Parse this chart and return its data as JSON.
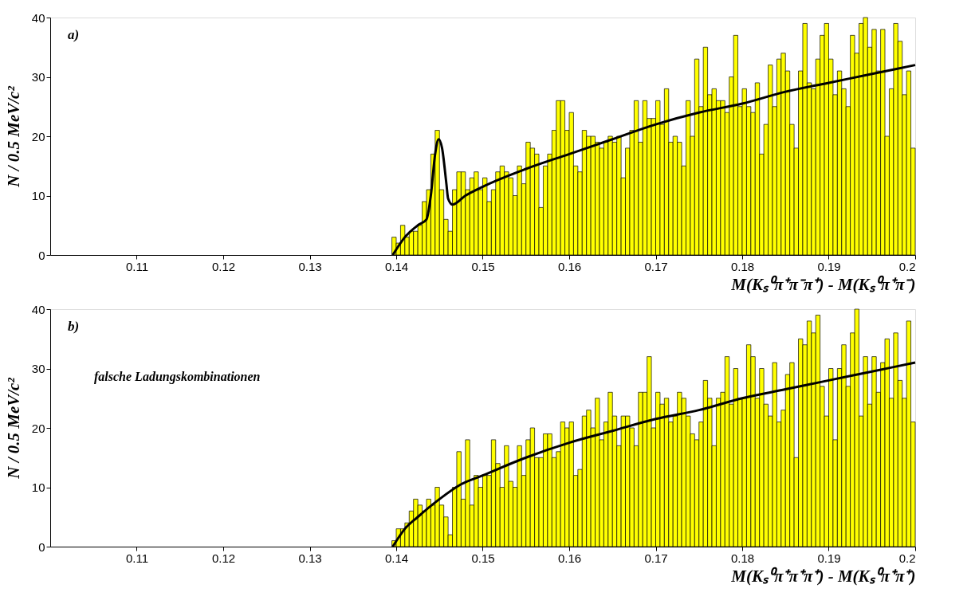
{
  "chart_data": [
    {
      "type": "histogram",
      "xlabel": "M(Kₛ⁰π⁺π⁻π⁺) - M(Kₛ⁰π⁺π⁻)",
      "ylabel": "N / 0.5 MeV/c²",
      "annotations": [
        "a)"
      ],
      "xlim": [
        0.1,
        0.2
      ],
      "xticks": [
        0.11,
        0.12,
        0.13,
        0.14,
        0.15,
        0.16,
        0.17,
        0.18,
        0.19,
        0.2
      ],
      "ylim": [
        0,
        40
      ],
      "yticks": [
        0,
        10,
        20,
        30,
        40
      ],
      "grid": false,
      "bins": [
        0.1395,
        0.14,
        0.1405,
        0.141,
        0.1415,
        0.142,
        0.1425,
        0.143,
        0.1435,
        0.144,
        0.1445,
        0.145,
        0.1455,
        0.146,
        0.1465,
        0.147,
        0.1475,
        0.148,
        0.1485,
        0.149,
        0.1495,
        0.15,
        0.1505,
        0.151,
        0.1515,
        0.152,
        0.1525,
        0.153,
        0.1535,
        0.154,
        0.1545,
        0.155,
        0.1555,
        0.156,
        0.1565,
        0.157,
        0.1575,
        0.158,
        0.1585,
        0.159,
        0.1595,
        0.16,
        0.1605,
        0.161,
        0.1615,
        0.162,
        0.1625,
        0.163,
        0.1635,
        0.164,
        0.1645,
        0.165,
        0.1655,
        0.166,
        0.1665,
        0.167,
        0.1675,
        0.168,
        0.1685,
        0.169,
        0.1695,
        0.17,
        0.1705,
        0.171,
        0.1715,
        0.172,
        0.1725,
        0.173,
        0.1735,
        0.174,
        0.1745,
        0.175,
        0.1755,
        0.176,
        0.1765,
        0.177,
        0.1775,
        0.178,
        0.1785,
        0.179,
        0.1795,
        0.18,
        0.1805,
        0.181,
        0.1815,
        0.182,
        0.1825,
        0.183,
        0.1835,
        0.184,
        0.1845,
        0.185,
        0.1855,
        0.186,
        0.1865,
        0.187,
        0.1875,
        0.188,
        0.1885,
        0.189,
        0.1895,
        0.19,
        0.1905,
        0.191,
        0.1915,
        0.192,
        0.1925,
        0.193,
        0.1935,
        0.194,
        0.1945,
        0.195,
        0.1955,
        0.196,
        0.1965,
        0.197,
        0.1975,
        0.198,
        0.1985,
        0.199,
        0.1995,
        0.2
      ],
      "series": [
        {
          "color": "#ffff00",
          "values": [
            3,
            2,
            5,
            3,
            4,
            4,
            5,
            9,
            11,
            17,
            21,
            11,
            6,
            4,
            11,
            14,
            14,
            11,
            13,
            14,
            11,
            13,
            9,
            11,
            14,
            15,
            14,
            13,
            10,
            15,
            12,
            19,
            18,
            17,
            8,
            15,
            17,
            21,
            26,
            26,
            21,
            24,
            15,
            14,
            21,
            20,
            20,
            19,
            18,
            19,
            20,
            19,
            20,
            13,
            18,
            21,
            26,
            19,
            26,
            23,
            23,
            26,
            22,
            28,
            19,
            20,
            19,
            15,
            26,
            20,
            33,
            25,
            35,
            27,
            28,
            26,
            26,
            24,
            30,
            37,
            25,
            28,
            25,
            24,
            29,
            17,
            22,
            32,
            25,
            33,
            34,
            31,
            22,
            18,
            31,
            39,
            29,
            28,
            33,
            37,
            39,
            33,
            27,
            31,
            28,
            25,
            37,
            34,
            39,
            40,
            35,
            38,
            31,
            38,
            20,
            28,
            39,
            36,
            27,
            31,
            18
          ]
        },
        {
          "type": "line",
          "color": "#000000",
          "x": [
            0.1396,
            0.141,
            0.1425,
            0.1435,
            0.144,
            0.1445,
            0.1449,
            0.1453,
            0.1458,
            0.146,
            0.1465,
            0.148,
            0.15,
            0.155,
            0.16,
            0.165,
            0.17,
            0.175,
            0.18,
            0.185,
            0.19,
            0.195,
            0.2
          ],
          "values": [
            0,
            3,
            5,
            6,
            10,
            17,
            19.5,
            18,
            12,
            9.5,
            8.5,
            10,
            11.5,
            14.5,
            17,
            19.5,
            22,
            24,
            25.5,
            27.5,
            29,
            30.5,
            32
          ]
        }
      ]
    },
    {
      "type": "histogram",
      "xlabel": "M(Kₛ⁰π⁺π⁺π⁺) - M(Kₛ⁰π⁺π⁺)",
      "ylabel": "N / 0.5 MeV/c²",
      "annotations": [
        "b)",
        "falsche Ladungskombinationen"
      ],
      "xlim": [
        0.1,
        0.2
      ],
      "xticks": [
        0.11,
        0.12,
        0.13,
        0.14,
        0.15,
        0.16,
        0.17,
        0.18,
        0.19,
        0.2
      ],
      "ylim": [
        0,
        40
      ],
      "yticks": [
        0,
        10,
        20,
        30,
        40
      ],
      "grid": false,
      "bins": [
        0.1395,
        0.14,
        0.1405,
        0.141,
        0.1415,
        0.142,
        0.1425,
        0.143,
        0.1435,
        0.144,
        0.1445,
        0.145,
        0.1455,
        0.146,
        0.1465,
        0.147,
        0.1475,
        0.148,
        0.1485,
        0.149,
        0.1495,
        0.15,
        0.1505,
        0.151,
        0.1515,
        0.152,
        0.1525,
        0.153,
        0.1535,
        0.154,
        0.1545,
        0.155,
        0.1555,
        0.156,
        0.1565,
        0.157,
        0.1575,
        0.158,
        0.1585,
        0.159,
        0.1595,
        0.16,
        0.1605,
        0.161,
        0.1615,
        0.162,
        0.1625,
        0.163,
        0.1635,
        0.164,
        0.1645,
        0.165,
        0.1655,
        0.166,
        0.1665,
        0.167,
        0.1675,
        0.168,
        0.1685,
        0.169,
        0.1695,
        0.17,
        0.1705,
        0.171,
        0.1715,
        0.172,
        0.1725,
        0.173,
        0.1735,
        0.174,
        0.1745,
        0.175,
        0.1755,
        0.176,
        0.1765,
        0.177,
        0.1775,
        0.178,
        0.1785,
        0.179,
        0.1795,
        0.18,
        0.1805,
        0.181,
        0.1815,
        0.182,
        0.1825,
        0.183,
        0.1835,
        0.184,
        0.1845,
        0.185,
        0.1855,
        0.186,
        0.1865,
        0.187,
        0.1875,
        0.188,
        0.1885,
        0.189,
        0.1895,
        0.19,
        0.1905,
        0.191,
        0.1915,
        0.192,
        0.1925,
        0.193,
        0.1935,
        0.194,
        0.1945,
        0.195,
        0.1955,
        0.196,
        0.1965,
        0.197,
        0.1975,
        0.198,
        0.1985,
        0.199,
        0.1995,
        0.2
      ],
      "series": [
        {
          "color": "#ffff00",
          "values": [
            1,
            3,
            3,
            4,
            6,
            8,
            7,
            6,
            8,
            7,
            10,
            7,
            5,
            2,
            10,
            16,
            8,
            18,
            7,
            12,
            10,
            12,
            12,
            18,
            14,
            10,
            17,
            11,
            10,
            17,
            12,
            18,
            20,
            15,
            15,
            19,
            19,
            15,
            16,
            21,
            20,
            21,
            12,
            13,
            22,
            23,
            20,
            25,
            18,
            21,
            26,
            22,
            17,
            22,
            22,
            20,
            17,
            26,
            26,
            32,
            20,
            26,
            24,
            25,
            21,
            22,
            26,
            25,
            22,
            19,
            18,
            21,
            28,
            25,
            17,
            25,
            26,
            32,
            24,
            30,
            25,
            25,
            34,
            32,
            25,
            30,
            24,
            22,
            31,
            21,
            23,
            29,
            31,
            15,
            35,
            34,
            38,
            36,
            39,
            27,
            22,
            30,
            18,
            30,
            34,
            27,
            36,
            40,
            22,
            32,
            24,
            32,
            26,
            31,
            35,
            25,
            36,
            28,
            25,
            38,
            21
          ]
        },
        {
          "type": "line",
          "color": "#000000",
          "x": [
            0.1396,
            0.141,
            0.1425,
            0.145,
            0.1475,
            0.15,
            0.155,
            0.16,
            0.165,
            0.17,
            0.175,
            0.18,
            0.185,
            0.19,
            0.195,
            0.2
          ],
          "values": [
            0,
            3,
            5,
            8,
            10.5,
            12,
            15,
            17.5,
            19.5,
            21.5,
            23,
            25,
            26.5,
            28,
            29.5,
            31
          ]
        }
      ]
    }
  ]
}
